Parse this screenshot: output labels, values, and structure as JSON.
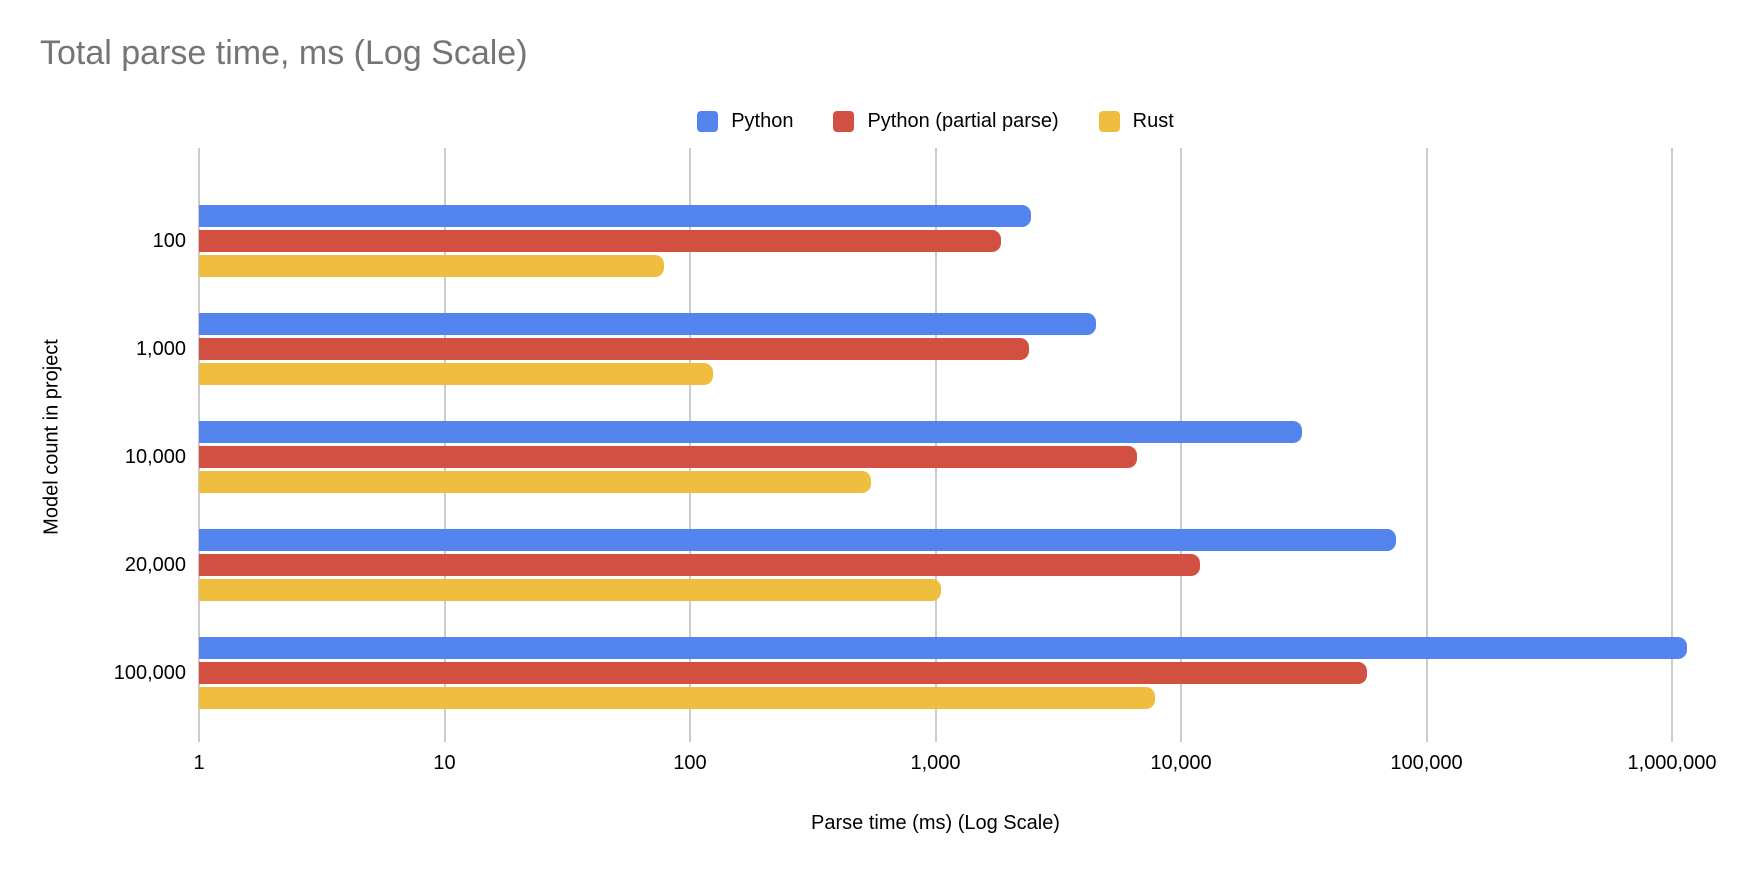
{
  "chart_data": {
    "type": "bar",
    "orientation": "horizontal",
    "x_log_scale": true,
    "title": "Total parse time, ms (Log Scale)",
    "xlabel": "Parse time (ms) (Log Scale)",
    "ylabel": "Model count in project",
    "categories": [
      "100",
      "1,000",
      "10,000",
      "20,000",
      "100,000"
    ],
    "series": [
      {
        "name": "Python",
        "color": "#5383EC",
        "values": [
          2450,
          4500,
          31000,
          75000,
          1150000
        ]
      },
      {
        "name": "Python (partial parse)",
        "color": "#D25041",
        "values": [
          1850,
          2400,
          6600,
          12000,
          57000
        ]
      },
      {
        "name": "Rust",
        "color": "#F0BE3F",
        "values": [
          78,
          124,
          545,
          1050,
          7800
        ]
      }
    ],
    "x_ticks": [
      "1",
      "10",
      "100",
      "1,000",
      "10,000",
      "100,000",
      "1,000,000"
    ],
    "xlim": [
      1,
      1000000
    ],
    "grid": true,
    "legend_position": "top"
  },
  "colors": {
    "title_text": "#757575",
    "gridline": "#cccccc",
    "axis_text": "#000000",
    "background": "#ffffff"
  }
}
